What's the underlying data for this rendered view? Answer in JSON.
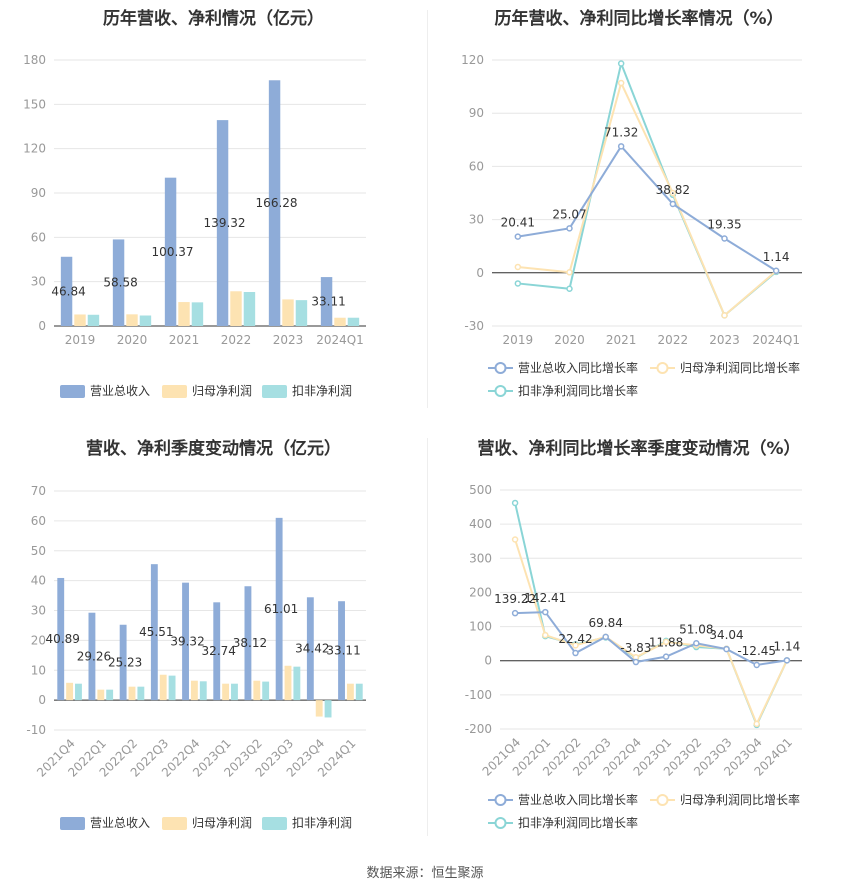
{
  "colors": {
    "revenue": "#8eacd8",
    "parent": "#fde3b2",
    "deduct": "#a6dfe2",
    "revLine": "#8eacd8",
    "parLine": "#fde3b2",
    "dedLine": "#8ad5d6"
  },
  "chart_data": [
    {
      "type": "bar",
      "title": "历年营收、净利情况（亿元）",
      "categories": [
        "2019",
        "2020",
        "2021",
        "2022",
        "2023",
        "2024Q1"
      ],
      "ylim": [
        0,
        180
      ],
      "yticks": [
        0,
        30,
        60,
        90,
        120,
        150,
        180
      ],
      "series": [
        {
          "name": "营业总收入",
          "values": [
            46.84,
            58.58,
            100.37,
            139.32,
            166.28,
            33.11
          ],
          "labels": [
            "46.84",
            "58.58",
            "100.37",
            "139.32",
            "166.28",
            "33.11"
          ]
        },
        {
          "name": "归母净利润",
          "values": [
            7.8,
            7.9,
            16.2,
            23.5,
            18.0,
            5.6
          ]
        },
        {
          "name": "扣非净利润",
          "values": [
            7.6,
            7.1,
            16.0,
            23.0,
            17.5,
            5.6
          ]
        }
      ]
    },
    {
      "type": "line",
      "title": "历年营收、净利同比增长率情况（%）",
      "categories": [
        "2019",
        "2020",
        "2021",
        "2022",
        "2023",
        "2024Q1"
      ],
      "ylim": [
        -30,
        120
      ],
      "yticks": [
        -30,
        0,
        30,
        60,
        90,
        120
      ],
      "series": [
        {
          "name": "营业总收入同比增长率",
          "values": [
            20.41,
            25.07,
            71.32,
            38.82,
            19.35,
            1.14
          ],
          "labels": [
            "20.41",
            "25.07",
            "71.32",
            "38.82",
            "19.35",
            "1.14"
          ]
        },
        {
          "name": "归母净利润同比增长率",
          "values": [
            3.3,
            0.3,
            107,
            45,
            -24,
            1.0
          ]
        },
        {
          "name": "扣非净利润同比增长率",
          "values": [
            -6,
            -9,
            118,
            44,
            -24,
            0.5
          ]
        }
      ]
    },
    {
      "type": "bar",
      "title": "营收、净利季度变动情况（亿元）",
      "categories": [
        "2021Q4",
        "2022Q1",
        "2022Q2",
        "2022Q3",
        "2022Q4",
        "2023Q1",
        "2023Q2",
        "2023Q3",
        "2023Q4",
        "2024Q1"
      ],
      "ylim": [
        -10,
        70
      ],
      "yticks": [
        -10,
        0,
        10,
        20,
        30,
        40,
        50,
        60,
        70
      ],
      "series": [
        {
          "name": "营业总收入",
          "values": [
            40.89,
            29.26,
            25.23,
            45.51,
            39.32,
            32.74,
            38.12,
            61.01,
            34.42,
            33.11
          ],
          "labels": [
            "40.89",
            "29.26",
            "25.23",
            "45.51",
            "39.32",
            "32.74",
            "38.12",
            "61.01",
            "34.42",
            "33.11"
          ]
        },
        {
          "name": "归母净利润",
          "values": [
            5.8,
            3.5,
            4.5,
            8.5,
            6.5,
            5.5,
            6.5,
            11.5,
            -5.5,
            5.5
          ]
        },
        {
          "name": "扣非净利润",
          "values": [
            5.5,
            3.5,
            4.5,
            8.2,
            6.3,
            5.5,
            6.2,
            11.2,
            -5.8,
            5.5
          ]
        }
      ]
    },
    {
      "type": "line",
      "title": "营收、净利同比增长率季度变动情况（%）",
      "categories": [
        "2021Q4",
        "2022Q1",
        "2022Q2",
        "2022Q3",
        "2022Q4",
        "2023Q1",
        "2023Q2",
        "2023Q3",
        "2023Q4",
        "2024Q1"
      ],
      "ylim": [
        -200,
        500
      ],
      "yticks": [
        -200,
        -100,
        0,
        100,
        200,
        300,
        400,
        500
      ],
      "series": [
        {
          "name": "营业总收入同比增长率",
          "values": [
            139.22,
            142.41,
            22.42,
            69.84,
            -3.83,
            11.88,
            51.08,
            34.04,
            -12.45,
            1.14
          ],
          "labels": [
            "139.22",
            "142.41",
            "22.42",
            "69.84",
            "-3.83",
            "11.88",
            "51.08",
            "34.04",
            "-12.45",
            "1.14"
          ]
        },
        {
          "name": "归母净利润同比增长率",
          "values": [
            355,
            75,
            45,
            70,
            10,
            55,
            45,
            35,
            -185,
            1
          ]
        },
        {
          "name": "扣非净利润同比增长率",
          "values": [
            462,
            72,
            48,
            68,
            8,
            58,
            40,
            35,
            -188,
            1
          ]
        }
      ]
    }
  ],
  "source": "数据来源：恒生聚源"
}
